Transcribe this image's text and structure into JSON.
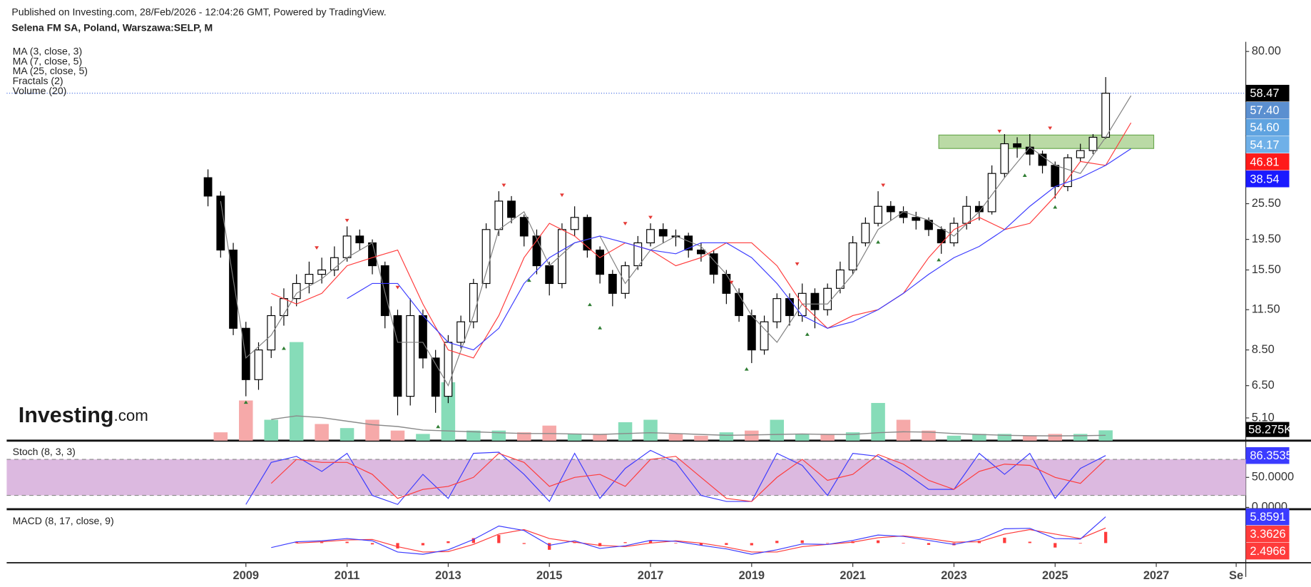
{
  "header": {
    "published": "Published on Investing.com, 28/Feb/2026 - 12:04:26 GMT, Powered by TradingView.",
    "logo_main": "Investing",
    "logo_suffix": ".com"
  },
  "chart_data": [
    {
      "type": "candlestick",
      "title": "Selena FM SA, Poland, Warszawa:SELP, M",
      "log_y": true,
      "xlim": [
        2004.27,
        2028.77
      ],
      "ylim": [
        4.3,
        86
      ],
      "xticks": [
        2009,
        2011,
        2013,
        2015,
        2017,
        2019,
        2021,
        2023,
        2025,
        2027,
        {
          "value": 2028.58,
          "label": "Se"
        }
      ],
      "yticks": [
        {
          "value": 80,
          "label": "80.00"
        },
        {
          "value": 25.5,
          "label": "25.50"
        },
        {
          "value": 19.5,
          "label": "19.50"
        },
        {
          "value": 15.5,
          "label": "15.50"
        },
        {
          "value": 11.5,
          "label": "11.50"
        },
        {
          "value": 8.5,
          "label": "8.50"
        },
        {
          "value": 6.5,
          "label": "6.50"
        },
        {
          "value": 5.1,
          "label": "5.10"
        }
      ],
      "up_color": "#ffffff",
      "down_color": "#000000",
      "x": [
        2008.25,
        2008.5,
        2008.75,
        2009,
        2009.25,
        2009.5,
        2009.75,
        2010,
        2010.25,
        2010.5,
        2010.75,
        2011,
        2011.25,
        2011.5,
        2011.75,
        2012,
        2012.25,
        2012.5,
        2012.75,
        2013,
        2013.25,
        2013.5,
        2013.75,
        2014,
        2014.25,
        2014.5,
        2014.75,
        2015,
        2015.25,
        2015.5,
        2015.75,
        2016,
        2016.25,
        2016.5,
        2016.75,
        2017,
        2017.25,
        2017.5,
        2017.75,
        2018,
        2018.25,
        2018.5,
        2018.75,
        2019,
        2019.25,
        2019.5,
        2019.75,
        2020,
        2020.25,
        2020.5,
        2020.75,
        2021,
        2021.25,
        2021.5,
        2021.75,
        2022,
        2022.25,
        2022.5,
        2022.75,
        2023,
        2023.25,
        2023.5,
        2023.75,
        2024,
        2024.25,
        2024.5,
        2024.75,
        2025,
        2025.25,
        2025.5,
        2025.75,
        2026
      ],
      "open": [
        31,
        27,
        18,
        10,
        6.8,
        8.5,
        11,
        12.5,
        14,
        15,
        15.5,
        17,
        20,
        19,
        16,
        11,
        6,
        11,
        8,
        6,
        9,
        10.5,
        14,
        21,
        26,
        23,
        20,
        16,
        14,
        21,
        23,
        18,
        15,
        13,
        16,
        19,
        21,
        20,
        20,
        18,
        17.5,
        15,
        13,
        11,
        8.5,
        10.5,
        12.5,
        11,
        13,
        11.5,
        13.5,
        15.5,
        19,
        22,
        25,
        24,
        23,
        22.5,
        21,
        19,
        22,
        25,
        24,
        32,
        40,
        39,
        37,
        34,
        29,
        36,
        38,
        42
      ],
      "high": [
        33,
        28,
        19,
        10.5,
        9,
        11.8,
        13.5,
        15,
        16.5,
        17,
        18.5,
        21.5,
        21,
        19.5,
        16.5,
        11.5,
        12.5,
        11.5,
        8.5,
        9.5,
        11,
        14.5,
        22,
        28,
        27,
        23.5,
        21,
        16.5,
        22,
        25,
        23.5,
        18.5,
        15.5,
        16.5,
        20,
        22,
        22,
        21,
        20.5,
        19,
        18,
        15.5,
        13.5,
        11.5,
        11,
        13,
        13,
        14,
        13.5,
        14,
        16.5,
        20,
        23,
        28,
        26,
        25,
        24,
        23,
        21.5,
        23,
        27,
        26,
        34,
        43,
        42,
        43,
        38,
        35,
        37,
        40,
        43,
        66
      ],
      "low": [
        25,
        17,
        9.5,
        6.0,
        6.3,
        8,
        10.2,
        11.8,
        13,
        14,
        14.8,
        16.5,
        18,
        15,
        10,
        5.2,
        5.6,
        7.4,
        5.3,
        5.7,
        8.6,
        10,
        13.5,
        20,
        22,
        18.5,
        15,
        12.8,
        13.5,
        20,
        17,
        14,
        11.8,
        12.5,
        15.5,
        18.5,
        19,
        18.5,
        17,
        16.5,
        14,
        12,
        10.5,
        7.7,
        8.2,
        10,
        10.2,
        10.5,
        10,
        11,
        13,
        15,
        18.5,
        21.5,
        22.5,
        22,
        21,
        20,
        17.5,
        18.5,
        21,
        22.5,
        23.5,
        31,
        36,
        34,
        32,
        26.5,
        28,
        35,
        37,
        41.5
      ],
      "close": [
        27,
        18,
        10,
        6.8,
        8.5,
        11,
        12.5,
        14,
        15,
        15.5,
        17,
        20,
        19,
        16,
        11,
        6,
        11,
        8,
        6,
        9,
        10.5,
        14,
        21,
        26,
        23,
        20,
        16,
        14,
        21,
        23,
        18,
        15,
        13,
        16,
        19,
        21,
        20,
        20,
        18,
        17.5,
        15,
        13,
        11,
        8.5,
        10.5,
        12.5,
        11,
        13,
        11.5,
        13.5,
        15.5,
        19,
        22,
        25,
        24,
        23,
        22.5,
        21,
        19,
        22,
        25,
        24,
        32,
        40,
        39,
        37,
        34,
        29,
        36,
        38,
        42,
        58.47
      ],
      "overlays": [
        {
          "name": "MA (3, close, 3)",
          "color": "#808080",
          "x": [
            2008.5,
            2009,
            2009.5,
            2010,
            2010.5,
            2011,
            2011.5,
            2012,
            2012.5,
            2013,
            2013.5,
            2014,
            2014.5,
            2015,
            2015.5,
            2016,
            2016.5,
            2017,
            2017.5,
            2018,
            2018.5,
            2019,
            2019.5,
            2020,
            2020.5,
            2021,
            2021.5,
            2022,
            2022.5,
            2023,
            2023.5,
            2024,
            2024.5,
            2025,
            2025.5,
            2026,
            2026.5
          ],
          "values": [
            26,
            8,
            9.5,
            13,
            14.5,
            17,
            19,
            9,
            9,
            6.5,
            11,
            21,
            24,
            16,
            19,
            20,
            14,
            18,
            20,
            18.5,
            15,
            11,
            9,
            12,
            12,
            15,
            21,
            24,
            22.5,
            20,
            24,
            31,
            39,
            34,
            32,
            42,
            57.4
          ]
        },
        {
          "name": "MA (7, close, 5)",
          "color": "#ff3b3b",
          "x": [
            2009.5,
            2010,
            2010.5,
            2011,
            2011.5,
            2012,
            2012.5,
            2013,
            2013.5,
            2014,
            2014.5,
            2015,
            2015.5,
            2016,
            2016.5,
            2017,
            2017.5,
            2018,
            2018.5,
            2019,
            2019.5,
            2020,
            2020.5,
            2021,
            2021.5,
            2022,
            2022.5,
            2023,
            2023.5,
            2024,
            2024.5,
            2025,
            2025.5,
            2026,
            2026.5
          ],
          "values": [
            13,
            12,
            13,
            16,
            17,
            18,
            12,
            8.5,
            8,
            11,
            17,
            22,
            20,
            17,
            19,
            18,
            16,
            17,
            19,
            19,
            16,
            12,
            10,
            11,
            11.5,
            13,
            17,
            21,
            23,
            21,
            22,
            27,
            35,
            34,
            46.81
          ]
        },
        {
          "name": "MA (25, close, 5)",
          "color": "#3b3bff",
          "x": [
            2011,
            2011.5,
            2012,
            2012.5,
            2013,
            2013.5,
            2014,
            2014.5,
            2015,
            2015.5,
            2016,
            2016.5,
            2017,
            2017.5,
            2018,
            2018.5,
            2019,
            2019.5,
            2020,
            2020.5,
            2021,
            2021.5,
            2022,
            2022.5,
            2023,
            2023.5,
            2024,
            2024.5,
            2025,
            2025.5,
            2026,
            2026.5
          ],
          "values": [
            12.5,
            14,
            14,
            11,
            9,
            8.5,
            10,
            14,
            17,
            19,
            20,
            19,
            18,
            17.5,
            19,
            19,
            17,
            14,
            11,
            10,
            10.5,
            11.5,
            13,
            15,
            17,
            18.5,
            21,
            25,
            29,
            31,
            34,
            38.54
          ]
        }
      ],
      "fractals": {
        "name": "Fractals (2)",
        "high": {
          "color": "#e53935",
          "x": [
            2010.4,
            2011,
            2012,
            2014.1,
            2015.25,
            2016.5,
            2017,
            2018.6,
            2019.9,
            2021.6,
            2023.9,
            2024.9
          ],
          "values": [
            17.5,
            21.5,
            13,
            28,
            26,
            21,
            22,
            13.5,
            15.5,
            28,
            42,
            43
          ]
        },
        "low": {
          "color": "#2e7d32",
          "x": [
            2009,
            2009.75,
            2012.8,
            2014.6,
            2015.8,
            2016,
            2018.9,
            2020.1,
            2021.5,
            2022.7,
            2024.4,
            2025
          ],
          "values": [
            6,
            9,
            5,
            15,
            12.5,
            10.5,
            7.7,
            10,
            20,
            17.5,
            33,
            26
          ]
        }
      },
      "zone": {
        "x": [
          2022.7,
          2026.95
        ],
        "low": 38.6,
        "high": 42.7,
        "color": "#a9d18e"
      },
      "price_line_color": "#4169e1",
      "price_labels": [
        {
          "value": 58.47,
          "color": "#000000"
        },
        {
          "value": 57.4,
          "label": "57.40",
          "color": "#5b8fd0"
        },
        {
          "value": 54.6,
          "label": "54.60",
          "color": "#5fa3e0"
        },
        {
          "value": 54.17,
          "color": "#6fb0e8"
        },
        {
          "value": 46.81,
          "color": "#ff1a1a"
        },
        {
          "value": 38.54,
          "color": "#1a1aff"
        }
      ]
    },
    {
      "type": "bar",
      "name": "Volume (20)",
      "ylim": [
        0,
        600000
      ],
      "x": [
        2008.5,
        2009,
        2009.5,
        2010,
        2010.5,
        2011,
        2011.5,
        2012,
        2012.5,
        2013,
        2013.5,
        2014,
        2014.5,
        2015,
        2015.5,
        2016,
        2016.5,
        2017,
        2017.5,
        2018,
        2018.5,
        2019,
        2019.5,
        2020,
        2020.5,
        2021,
        2021.5,
        2022,
        2022.5,
        2023,
        2023.5,
        2024,
        2024.5,
        2025,
        2025.5,
        2026
      ],
      "values": [
        47000,
        227000,
        118000,
        557000,
        94000,
        71000,
        118000,
        57000,
        38000,
        330000,
        57000,
        57000,
        47000,
        85000,
        38000,
        38000,
        104000,
        118000,
        38000,
        28000,
        47000,
        57000,
        118000,
        38000,
        38000,
        47000,
        213000,
        118000,
        57000,
        28000,
        38000,
        38000,
        28000,
        38000,
        38000,
        58275
      ],
      "colors": [
        "#f6a9a9",
        "#f6a9a9",
        "#86dcb8",
        "#86dcb8",
        "#f6a9a9",
        "#86dcb8",
        "#f6a9a9",
        "#f6a9a9",
        "#86dcb8",
        "#86dcb8",
        "#86dcb8",
        "#86dcb8",
        "#f6a9a9",
        "#f6a9a9",
        "#86dcb8",
        "#f6a9a9",
        "#86dcb8",
        "#86dcb8",
        "#f6a9a9",
        "#f6a9a9",
        "#86dcb8",
        "#f6a9a9",
        "#86dcb8",
        "#86dcb8",
        "#f6a9a9",
        "#86dcb8",
        "#86dcb8",
        "#f6a9a9",
        "#f6a9a9",
        "#86dcb8",
        "#86dcb8",
        "#86dcb8",
        "#f6a9a9",
        "#f6a9a9",
        "#86dcb8",
        "#86dcb8"
      ],
      "ma_color": "#8a8a8a",
      "ma": [
        null,
        null,
        120000,
        140000,
        130000,
        110000,
        90000,
        80000,
        60000,
        55000,
        50000,
        45000,
        40000,
        40000,
        38000,
        35000,
        40000,
        45000,
        40000,
        35000,
        30000,
        32000,
        35000,
        38000,
        35000,
        35000,
        45000,
        50000,
        48000,
        40000,
        35000,
        30000,
        28000,
        27000,
        28000,
        30000
      ],
      "current": {
        "value": 58275,
        "label": "58.275K"
      }
    },
    {
      "type": "line",
      "name": "Stoch (8, 3, 3)",
      "ylim": [
        -3,
        107
      ],
      "yticks": [
        {
          "value": 50,
          "label": "50.0000"
        },
        {
          "value": 0,
          "label": "0.0000"
        }
      ],
      "band": [
        20,
        80
      ],
      "band_color": "#dcb9e0",
      "x": [
        2009,
        2009.5,
        2010,
        2010.5,
        2011,
        2011.5,
        2012,
        2012.5,
        2013,
        2013.5,
        2014,
        2014.5,
        2015,
        2015.5,
        2016,
        2016.5,
        2017,
        2017.5,
        2018,
        2018.5,
        2019,
        2019.5,
        2020,
        2020.5,
        2021,
        2021.5,
        2022,
        2022.5,
        2023,
        2023.5,
        2024,
        2024.5,
        2025,
        2025.5,
        2026
      ],
      "series": [
        {
          "color": "#3b3bff",
          "values": [
            5,
            75,
            85,
            60,
            90,
            20,
            5,
            55,
            15,
            90,
            92,
            55,
            10,
            90,
            15,
            65,
            95,
            75,
            20,
            10,
            10,
            90,
            70,
            20,
            90,
            85,
            60,
            30,
            30,
            90,
            55,
            90,
            15,
            65,
            86.3535
          ]
        },
        {
          "color": "#ff3b3b",
          "values": [
            null,
            40,
            80,
            75,
            75,
            55,
            15,
            30,
            35,
            50,
            90,
            75,
            35,
            50,
            55,
            35,
            80,
            85,
            50,
            15,
            10,
            50,
            80,
            45,
            55,
            88,
            72,
            45,
            30,
            60,
            72,
            70,
            50,
            40,
            80
          ]
        }
      ]
    },
    {
      "type": "macd",
      "name": "MACD (8, 17, close, 9)",
      "ylim": [
        -4.2,
        7
      ],
      "x": [
        2009.5,
        2010,
        2010.5,
        2011,
        2011.5,
        2012,
        2012.5,
        2013,
        2013.5,
        2014,
        2014.5,
        2015,
        2015.5,
        2016,
        2016.5,
        2017,
        2017.5,
        2018,
        2018.5,
        2019,
        2019.5,
        2020,
        2020.5,
        2021,
        2021.5,
        2022,
        2022.5,
        2023,
        2023.5,
        2024,
        2024.5,
        2025,
        2025.5,
        2026
      ],
      "macd": {
        "color": "#3b3bff",
        "values": [
          -1.0,
          0.3,
          0.5,
          1.0,
          0.5,
          -2.0,
          -2.5,
          -1.5,
          0.8,
          3.8,
          2.8,
          -0.5,
          0.5,
          -1.2,
          -0.6,
          0.6,
          0.4,
          -0.5,
          -1.3,
          -2.5,
          -1.5,
          -0.2,
          -0.3,
          0.6,
          1.8,
          1.5,
          0.6,
          -0.3,
          0.8,
          3.2,
          3.3,
          1.0,
          0.9,
          5.8591
        ]
      },
      "signal": {
        "color": "#ff3b3b",
        "values": [
          null,
          0.0,
          0.3,
          0.7,
          0.8,
          -0.8,
          -2.0,
          -1.9,
          -0.3,
          2.0,
          3.0,
          1.0,
          0.2,
          -0.5,
          -0.8,
          0.0,
          0.5,
          0.0,
          -0.9,
          -2.0,
          -2.0,
          -0.8,
          -0.3,
          0.2,
          1.2,
          1.6,
          1.0,
          0.2,
          0.3,
          2.0,
          3.0,
          2.0,
          1.0,
          3.3626
        ]
      },
      "histogram": {
        "color": "#ff3b3b",
        "values": [
          null,
          0.3,
          0.2,
          0.3,
          -0.3,
          -1.2,
          -0.5,
          0.4,
          1.1,
          1.8,
          -0.2,
          -1.5,
          0.3,
          -0.7,
          0.2,
          0.6,
          -0.1,
          -0.5,
          -0.4,
          -0.5,
          0.5,
          0.6,
          0.0,
          0.4,
          0.6,
          -0.1,
          -0.4,
          -0.5,
          0.5,
          1.2,
          0.3,
          -1.0,
          -0.1,
          2.4966
        ]
      }
    }
  ]
}
